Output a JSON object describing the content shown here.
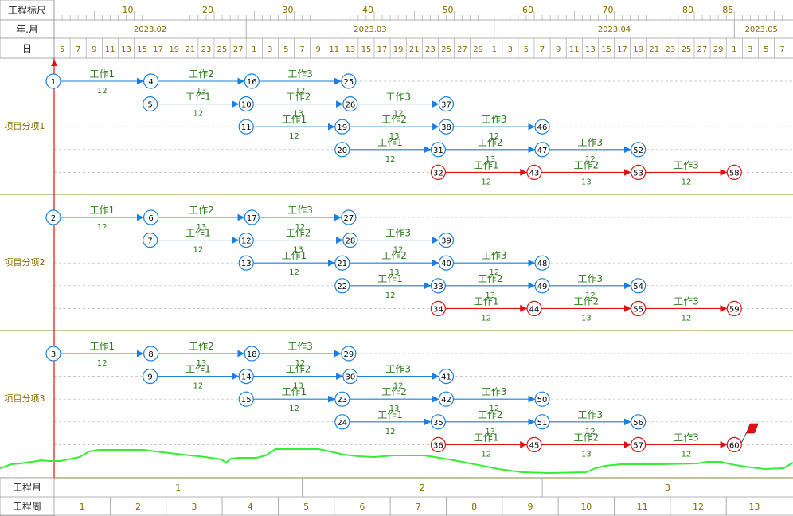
{
  "header": {
    "row_labels": {
      "ruler": "工程标尺",
      "month": "年.月",
      "day": "日"
    },
    "ruler_ticks": [
      "10",
      "20",
      "30",
      "40",
      "50",
      "60",
      "70",
      "80",
      "85"
    ],
    "months": [
      "2023.02",
      "2023.03",
      "2023.04",
      "2023.05"
    ],
    "days": [
      "5",
      "7",
      "9",
      "11",
      "13",
      "15",
      "17",
      "19",
      "21",
      "23",
      "25",
      "27",
      "1",
      "3",
      "5",
      "7",
      "9",
      "11",
      "13",
      "15",
      "17",
      "19",
      "21",
      "23",
      "25",
      "27",
      "29",
      "1",
      "3",
      "5",
      "7",
      "9",
      "11",
      "13",
      "15",
      "17",
      "19",
      "21",
      "23",
      "25",
      "27",
      "29",
      "1",
      "3",
      "5",
      "7"
    ]
  },
  "sections": [
    "项目分项1",
    "项目分项2",
    "项目分项3"
  ],
  "task_names": [
    "工作1",
    "工作2",
    "工作3"
  ],
  "durations": [
    "12",
    "13",
    "12"
  ],
  "node_ids": [
    [
      [
        "1",
        "4",
        "16",
        "25"
      ],
      [
        "5",
        "10",
        "26",
        "37"
      ],
      [
        "11",
        "19",
        "38",
        "46"
      ],
      [
        "20",
        "31",
        "47",
        "52"
      ],
      [
        "32",
        "43",
        "53",
        "58"
      ]
    ],
    [
      [
        "2",
        "6",
        "17",
        "27"
      ],
      [
        "7",
        "12",
        "28",
        "39"
      ],
      [
        "13",
        "21",
        "40",
        "48"
      ],
      [
        "22",
        "33",
        "49",
        "54"
      ],
      [
        "34",
        "44",
        "55",
        "59"
      ]
    ],
    [
      [
        "3",
        "8",
        "18",
        "29"
      ],
      [
        "9",
        "14",
        "30",
        "41"
      ],
      [
        "15",
        "23",
        "42",
        "50"
      ],
      [
        "24",
        "35",
        "51",
        "56"
      ],
      [
        "36",
        "45",
        "57",
        "60"
      ]
    ]
  ],
  "footer": {
    "month_label": "工程月",
    "week_label": "工程周",
    "months": [
      "1",
      "2",
      "3"
    ],
    "weeks": [
      "1",
      "2",
      "3",
      "4",
      "5",
      "6",
      "7",
      "8",
      "9",
      "10",
      "11",
      "12",
      "13"
    ]
  },
  "colors": {
    "normal": "#1a7fe0",
    "critical": "#e01010",
    "label": "#2a7a1a",
    "header_text": "#8a6a00",
    "section_line": "#8a8a3a",
    "resource_curve": "#33ee33"
  }
}
